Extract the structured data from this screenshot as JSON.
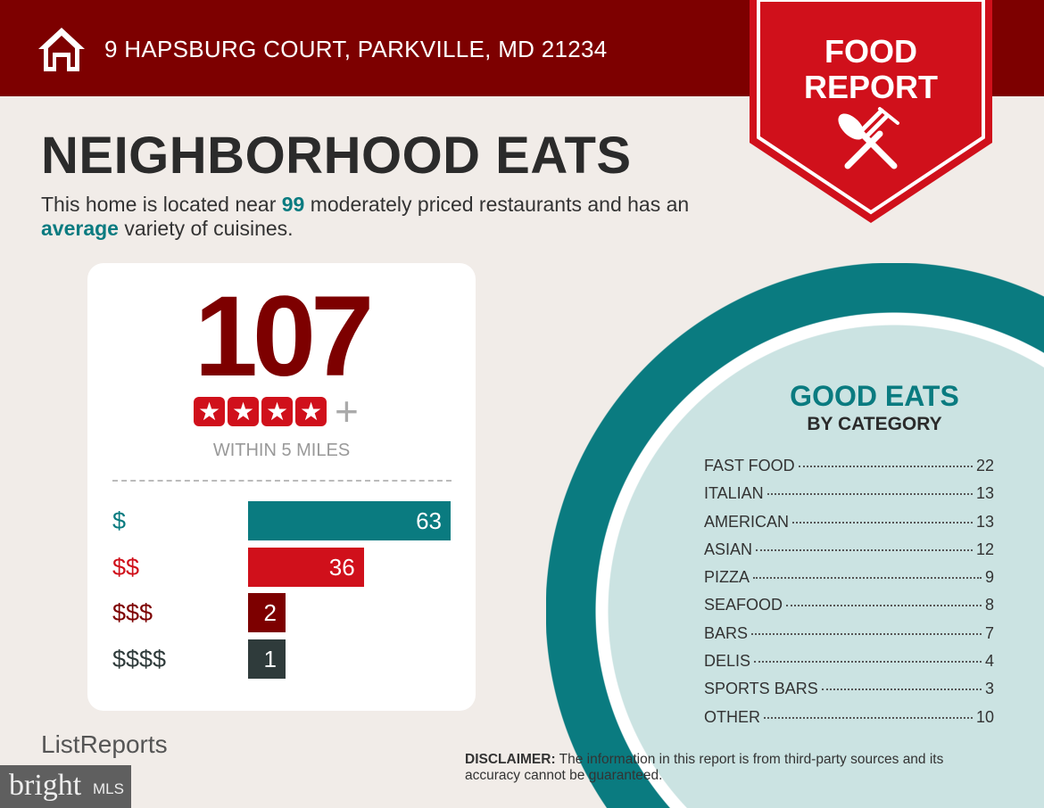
{
  "header": {
    "address": "9 HAPSBURG COURT, PARKVILLE, MD 21234",
    "icon": "home-icon"
  },
  "badge": {
    "line1": "FOOD",
    "line2": "REPORT",
    "icon": "spoon-fork-icon"
  },
  "title": "NEIGHBORHOOD EATS",
  "subtitle": {
    "p1": "This home is located near ",
    "count": "99",
    "p2": " moderately priced restaurants and has an ",
    "variety": "average",
    "p3": " variety of cuisines."
  },
  "card": {
    "total": "107",
    "stars": 4,
    "plus": "+",
    "within": "WITHIN 5 MILES",
    "prices": [
      {
        "label": "$",
        "value": 63,
        "color": "#0a7b80"
      },
      {
        "label": "$$",
        "value": 36,
        "color": "#d0101b"
      },
      {
        "label": "$$$",
        "value": 2,
        "color": "#7d0000"
      },
      {
        "label": "$$$$",
        "value": 1,
        "color": "#2f3b3b"
      }
    ]
  },
  "categories": {
    "title": "GOOD EATS",
    "subtitle": "BY CATEGORY",
    "items": [
      {
        "name": "FAST FOOD",
        "count": "22"
      },
      {
        "name": "ITALIAN",
        "count": "13"
      },
      {
        "name": "AMERICAN",
        "count": "13"
      },
      {
        "name": "ASIAN",
        "count": "12"
      },
      {
        "name": "PIZZA",
        "count": "9"
      },
      {
        "name": "SEAFOOD",
        "count": "8"
      },
      {
        "name": "BARS",
        "count": "7"
      },
      {
        "name": "DELIS",
        "count": "4"
      },
      {
        "name": "SPORTS BARS",
        "count": "3"
      },
      {
        "name": "OTHER",
        "count": "10"
      }
    ]
  },
  "footer": {
    "logo": "ListReports",
    "disclaimer_label": "DISCLAIMER:",
    "disclaimer": " The information in this report is from third-party sources and its accuracy cannot be guaranteed.",
    "watermark": "bright MLS"
  },
  "colors": {
    "dark_red": "#7d0000",
    "red": "#d0101b",
    "teal": "#0a7b80",
    "light_teal": "#cbe3e2"
  }
}
